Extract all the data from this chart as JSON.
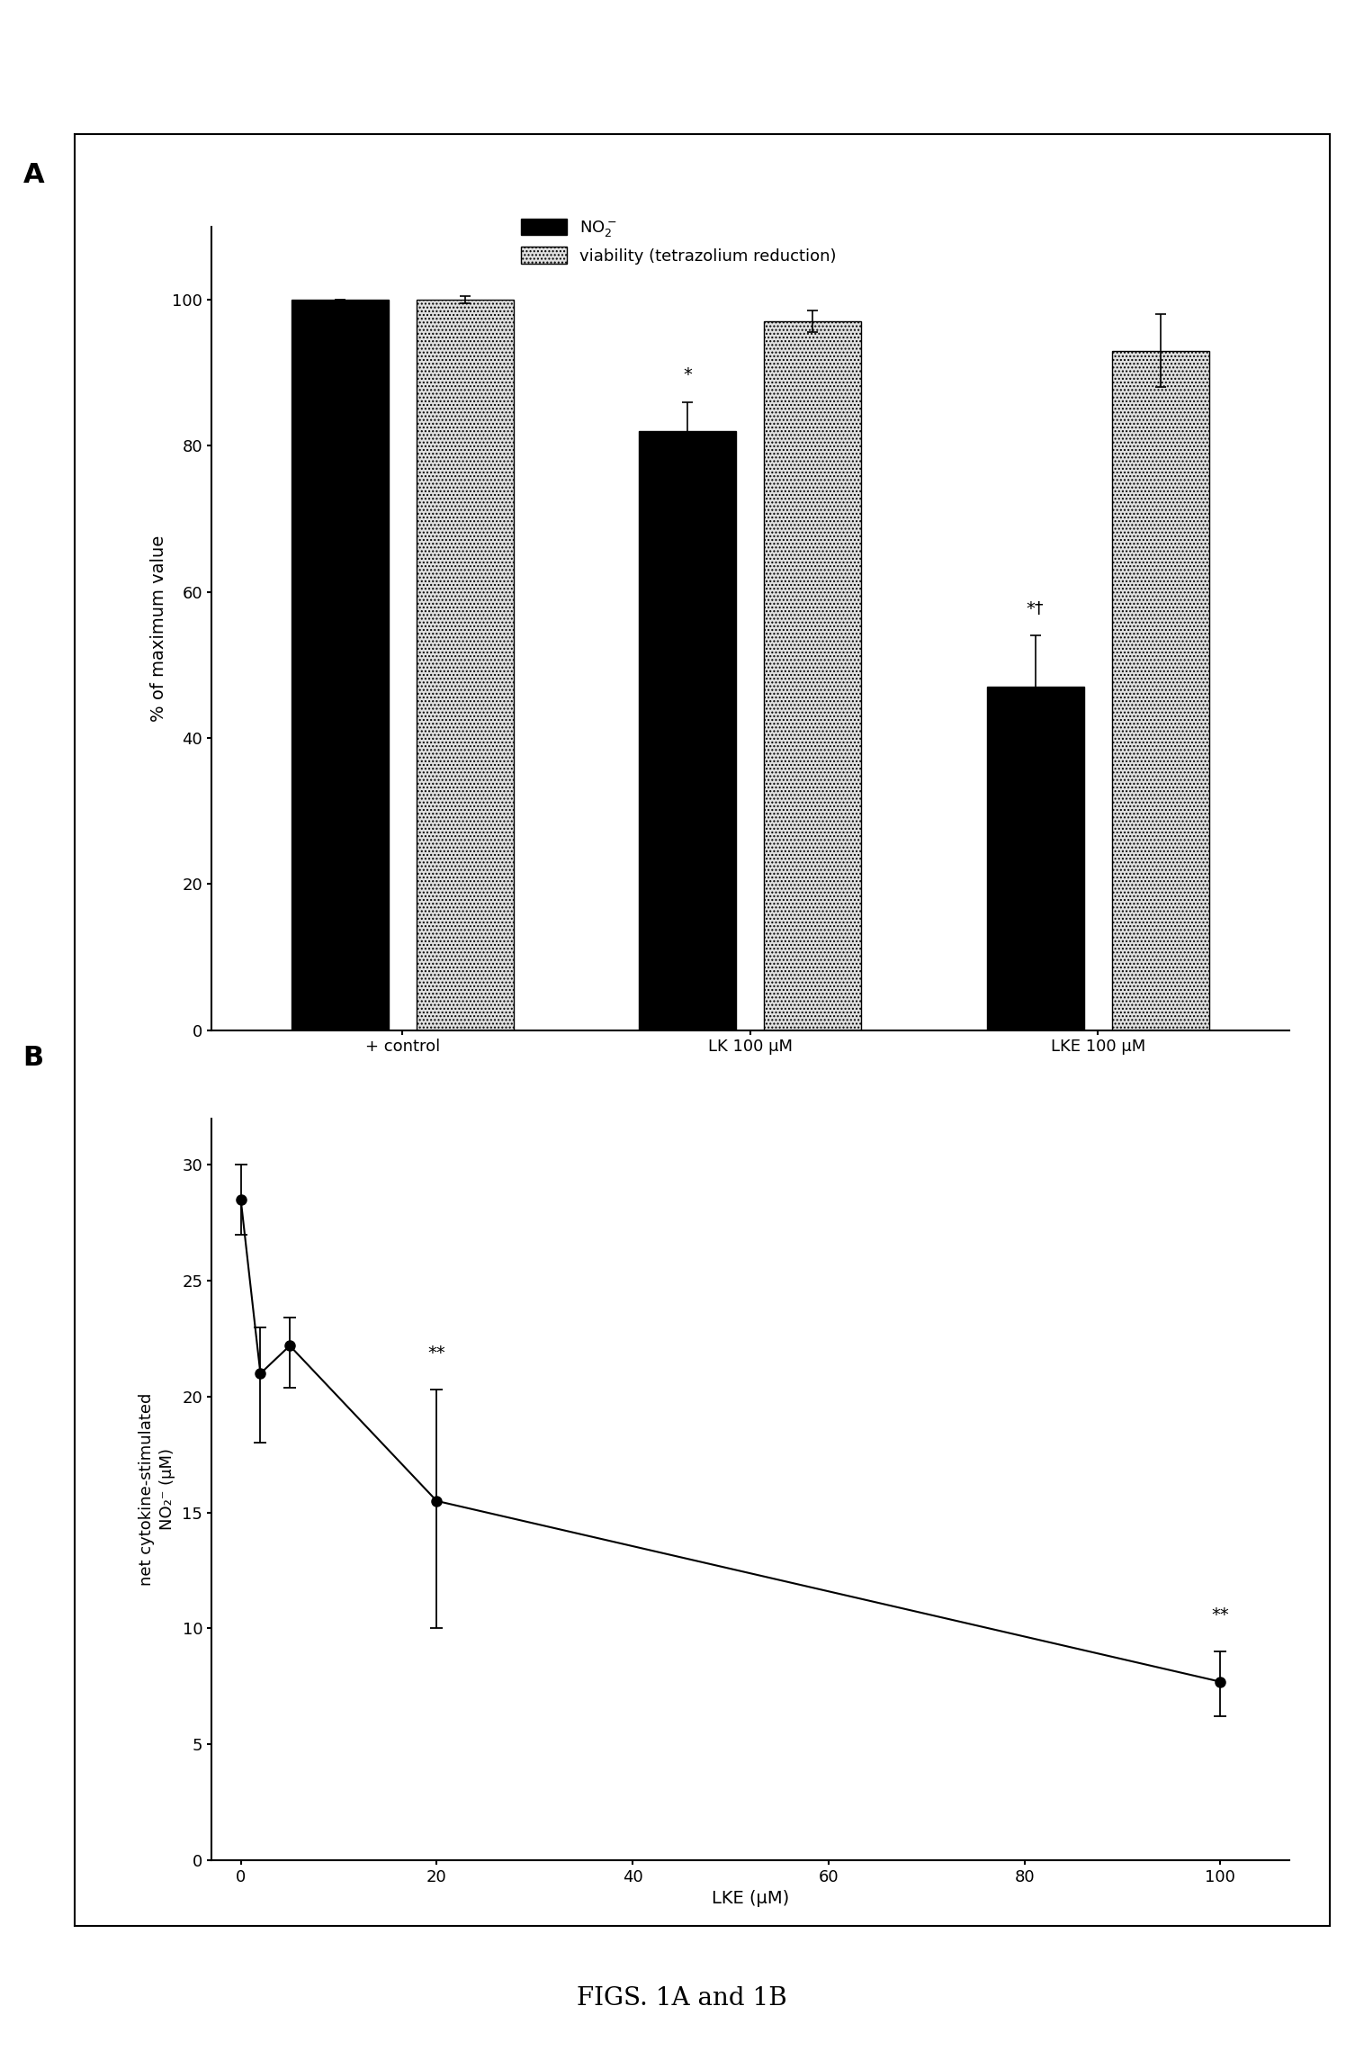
{
  "panel_A": {
    "groups": [
      "+ control",
      "LK 100 μM",
      "LKE 100 μM"
    ],
    "no2_values": [
      100,
      82,
      47
    ],
    "no2_errors": [
      0,
      4,
      7
    ],
    "viability_values": [
      100,
      97,
      93
    ],
    "viability_errors": [
      0.5,
      1.5,
      5
    ],
    "ylabel": "% of maximum value",
    "yticks": [
      0,
      20,
      40,
      60,
      80,
      100
    ],
    "ylim": [
      0,
      110
    ],
    "annot_lk_text": "*",
    "annot_lke_text": "*†"
  },
  "panel_B": {
    "x": [
      0,
      2,
      5,
      20,
      100
    ],
    "y": [
      28.5,
      21.0,
      22.2,
      15.5,
      7.7
    ],
    "yerr_upper": [
      1.5,
      2.0,
      1.2,
      4.8,
      1.3
    ],
    "yerr_lower": [
      1.5,
      3.0,
      1.8,
      5.5,
      1.5
    ],
    "xlabel": "LKE (μM)",
    "ylabel": "net cytokine-stimulated\nNO₂⁻ (μM)",
    "yticks": [
      0,
      5,
      10,
      15,
      20,
      25,
      30
    ],
    "ylim": [
      0,
      32
    ],
    "xticks": [
      0,
      20,
      40,
      60,
      80,
      100
    ],
    "xlim": [
      -3,
      107
    ],
    "annot_x20_text": "**",
    "annot_x100_text": "**"
  },
  "figure_title": "FIGS. 1A and 1B",
  "background_color": "#ffffff",
  "bar_solid_color": "#000000",
  "border_color": "#000000",
  "legend_label_no2": "NO$_2^-$",
  "legend_label_viab": "viability (tetrazolium reduction)",
  "panel_A_label": "A",
  "panel_B_label": "B"
}
